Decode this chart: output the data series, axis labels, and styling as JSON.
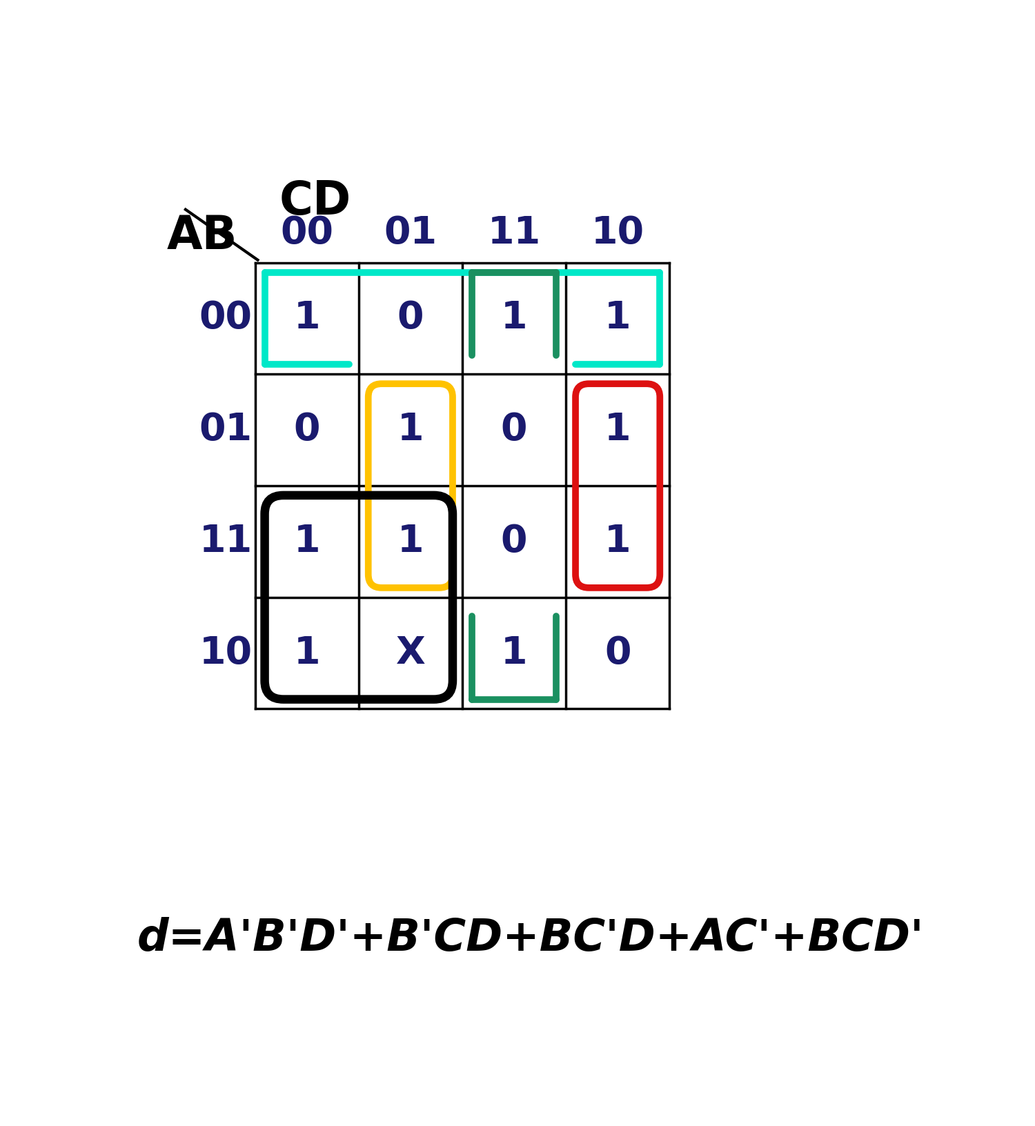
{
  "title": "d=A'B'D'+B'CD+BC'D+AC'+BCD'",
  "AB_labels": [
    "00",
    "01",
    "11",
    "10"
  ],
  "CD_labels": [
    "00",
    "01",
    "11",
    "10"
  ],
  "cells": [
    [
      "1",
      "0",
      "1",
      "1"
    ],
    [
      "0",
      "1",
      "0",
      "1"
    ],
    [
      "1",
      "1",
      "0",
      "1"
    ],
    [
      "1",
      "X",
      "1",
      "0"
    ]
  ],
  "bg_color": "#ffffff",
  "cell_text_color": "#1a1a6e",
  "cell_text_fontsize": 40,
  "header_fontsize": 40,
  "formula_fontsize": 46,
  "formula_color": "#000000",
  "cyan_color": "#00E8C8",
  "darkgreen_color": "#1a9060",
  "yellow_color": "#FFC200",
  "red_color": "#DD1111",
  "black_color": "#000000"
}
